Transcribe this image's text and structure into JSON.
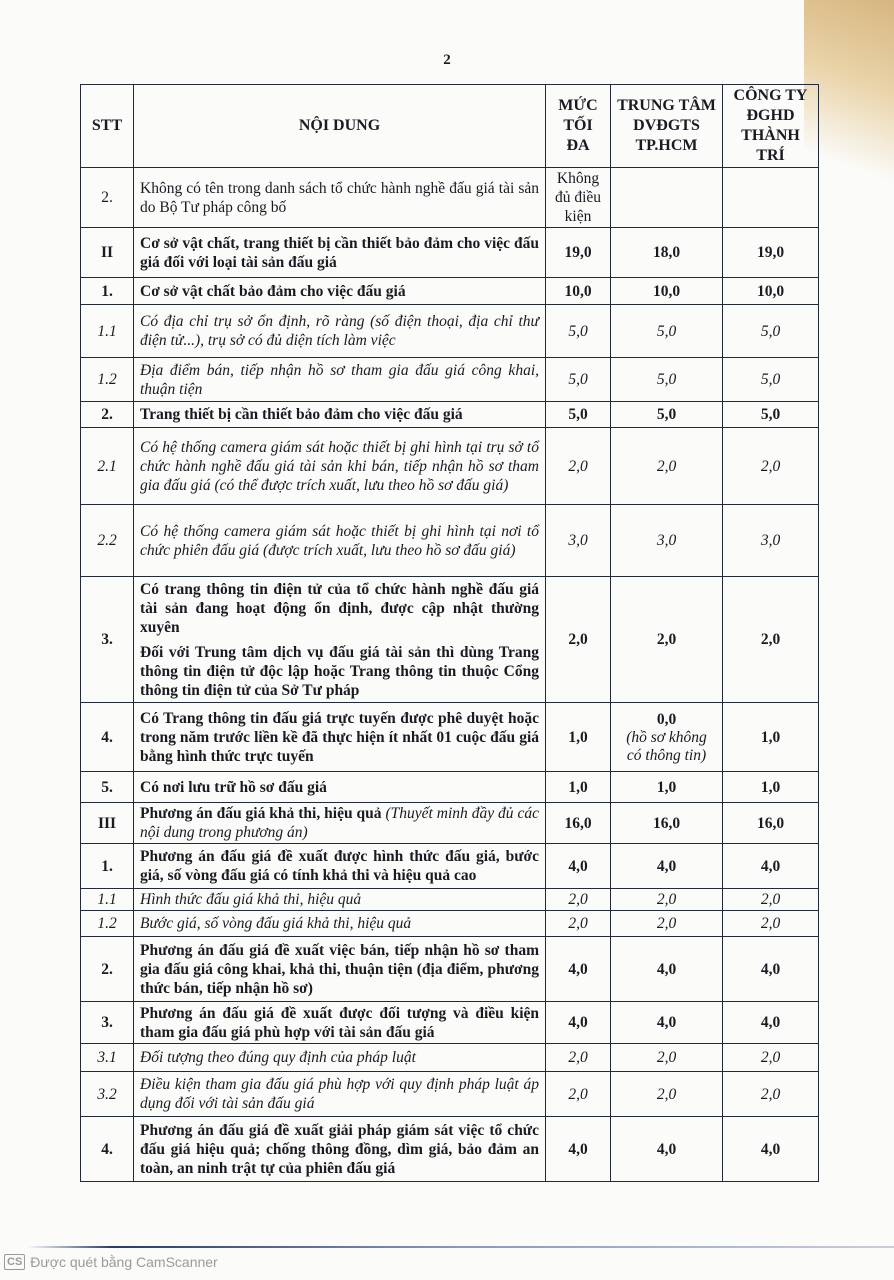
{
  "page_number": "2",
  "headers": {
    "stt": "STT",
    "content": "NỘI DUNG",
    "max": "MỨC TỐI ĐA",
    "col1": "TRUNG TÂM DVĐGTS TP.HCM",
    "col2": "CÔNG TY ĐGHD THÀNH TRÍ"
  },
  "rows": [
    {
      "stt": "2.",
      "style": "normal",
      "content": "Không có tên trong danh sách tổ chức hành nghề đấu giá tài sản do Bộ Tư pháp công bố",
      "max": "Không đủ điều kiện",
      "col1": "",
      "col2": ""
    },
    {
      "stt": "II",
      "style": "bold",
      "content": "Cơ sở vật chất, trang thiết bị cần thiết bảo đảm cho việc đấu giá đối với loại tài sản đấu giá",
      "max": "19,0",
      "col1": "18,0",
      "col2": "19,0"
    },
    {
      "stt": "1.",
      "style": "bold",
      "content": "Cơ sở vật chất bảo đảm cho việc đấu giá",
      "max": "10,0",
      "col1": "10,0",
      "col2": "10,0"
    },
    {
      "stt": "1.1",
      "style": "italic",
      "content": "Có địa chỉ trụ sở ổn định, rõ ràng (số điện thoại, địa chỉ thư điện tử...), trụ sở có đủ diện tích làm việc",
      "max": "5,0",
      "col1": "5,0",
      "col2": "5,0"
    },
    {
      "stt": "1.2",
      "style": "italic",
      "content": "Địa điểm bán, tiếp nhận hồ sơ tham gia đấu giá công khai, thuận tiện",
      "max": "5,0",
      "col1": "5,0",
      "col2": "5,0"
    },
    {
      "stt": "2.",
      "style": "bold",
      "content": "Trang thiết bị cần thiết bảo đảm cho việc đấu giá",
      "max": "5,0",
      "col1": "5,0",
      "col2": "5,0"
    },
    {
      "stt": "2.1",
      "style": "italic",
      "content": "Có hệ thống camera giám sát hoặc thiết bị ghi hình tại trụ sở tổ chức hành nghề đấu giá tài sản khi bán, tiếp nhận hồ sơ tham gia đấu giá (có thể được trích xuất, lưu theo hồ sơ đấu giá)",
      "max": "2,0",
      "col1": "2,0",
      "col2": "2,0"
    },
    {
      "stt": "2.2",
      "style": "italic",
      "content": "Có hệ thống camera giám sát hoặc thiết bị ghi hình tại nơi tổ chức phiên đấu giá (được trích xuất, lưu theo hồ sơ đấu giá)",
      "max": "3,0",
      "col1": "3,0",
      "col2": "3,0"
    },
    {
      "stt": "3.",
      "style": "bold",
      "content": "Có trang thông tin điện tử của tổ chức hành nghề đấu giá tài sản đang hoạt động ổn định, được cập nhật thường xuyên",
      "content2": "Đối với Trung tâm dịch vụ đấu giá tài sản thì dùng Trang thông tin điện tử độc lập hoặc Trang thông tin thuộc Cổng thông tin điện tử của Sở Tư pháp",
      "max": "2,0",
      "col1": "2,0",
      "col2": "2,0"
    },
    {
      "stt": "4.",
      "style": "bold",
      "content": "Có Trang thông tin đấu giá trực tuyến được phê duyệt hoặc trong năm trước liền kề đã thực hiện ít nhất 01 cuộc đấu giá bằng hình thức trực tuyến",
      "max": "1,0",
      "col1": "0,0",
      "col1_note": "(hồ sơ không có thông tin)",
      "col2": "1,0"
    },
    {
      "stt": "5.",
      "style": "bold",
      "content": "Có nơi lưu trữ hồ sơ đấu giá",
      "max": "1,0",
      "col1": "1,0",
      "col2": "1,0"
    },
    {
      "stt": "III",
      "style": "bold",
      "content": "Phương án đấu giá khả thi, hiệu quả",
      "content_italic": "(Thuyết minh đầy đủ các nội dung trong phương án)",
      "max": "16,0",
      "col1": "16,0",
      "col2": "16,0"
    },
    {
      "stt": "1.",
      "style": "bold",
      "content": "Phương án đấu giá đề xuất được hình thức đấu giá, bước giá, số vòng đấu giá có tính khả thi và hiệu quả cao",
      "max": "4,0",
      "col1": "4,0",
      "col2": "4,0"
    },
    {
      "stt": "1.1",
      "style": "italic",
      "content": "Hình thức đấu giá khả thi, hiệu quả",
      "max": "2,0",
      "col1": "2,0",
      "col2": "2,0"
    },
    {
      "stt": "1.2",
      "style": "italic",
      "content": "Bước giá, số vòng đấu giá khả thi, hiệu quả",
      "max": "2,0",
      "col1": "2,0",
      "col2": "2,0"
    },
    {
      "stt": "2.",
      "style": "bold",
      "content": "Phương án đấu giá đề xuất việc bán, tiếp nhận hồ sơ tham gia đấu giá công khai, khả thi, thuận tiện (địa điểm, phương thức bán, tiếp nhận hồ sơ)",
      "max": "4,0",
      "col1": "4,0",
      "col2": "4,0"
    },
    {
      "stt": "3.",
      "style": "bold",
      "content": "Phương án đấu giá đề xuất được đối tượng và điều kiện tham gia đấu giá phù hợp với tài sản đấu giá",
      "max": "4,0",
      "col1": "4,0",
      "col2": "4,0"
    },
    {
      "stt": "3.1",
      "style": "italic",
      "content": "Đối tượng theo đúng quy định của pháp luật",
      "max": "2,0",
      "col1": "2,0",
      "col2": "2,0"
    },
    {
      "stt": "3.2",
      "style": "italic",
      "content": "Điều kiện tham gia đấu giá phù hợp với quy định pháp luật áp dụng đối với tài sản đấu giá",
      "max": "2,0",
      "col1": "2,0",
      "col2": "2,0"
    },
    {
      "stt": "4.",
      "style": "bold",
      "content": "Phương án đấu giá đề xuất giải pháp giám sát việc tổ chức đấu giá hiệu quả; chống thông đồng, dìm giá, bảo đảm an toàn, an ninh trật tự của phiên đấu giá",
      "max": "4,0",
      "col1": "4,0",
      "col2": "4,0"
    }
  ],
  "watermark": {
    "logo": "CS",
    "text": "Được quét bằng CamScanner"
  }
}
